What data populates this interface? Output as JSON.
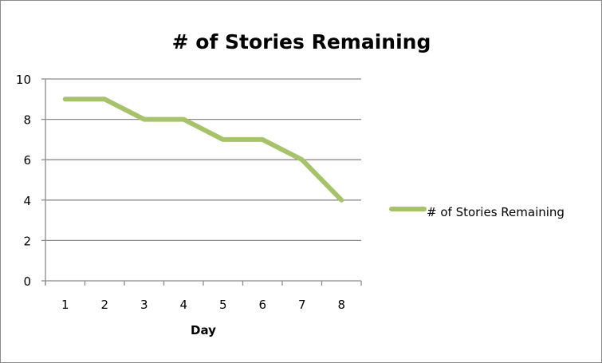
{
  "chart_data": {
    "type": "line",
    "title": "# of Stories Remaining",
    "xlabel": "Day",
    "ylabel": "",
    "categories": [
      "1",
      "2",
      "3",
      "4",
      "5",
      "6",
      "7",
      "8"
    ],
    "series": [
      {
        "name": "# of Stories Remaining",
        "values": [
          9,
          9,
          8,
          8,
          7,
          7,
          6,
          4
        ],
        "color": "#a6c26a"
      }
    ],
    "ylim": [
      0,
      10
    ],
    "yticks": [
      "0",
      "2",
      "4",
      "6",
      "8",
      "10"
    ],
    "grid": "horizontal",
    "legend": "right"
  }
}
